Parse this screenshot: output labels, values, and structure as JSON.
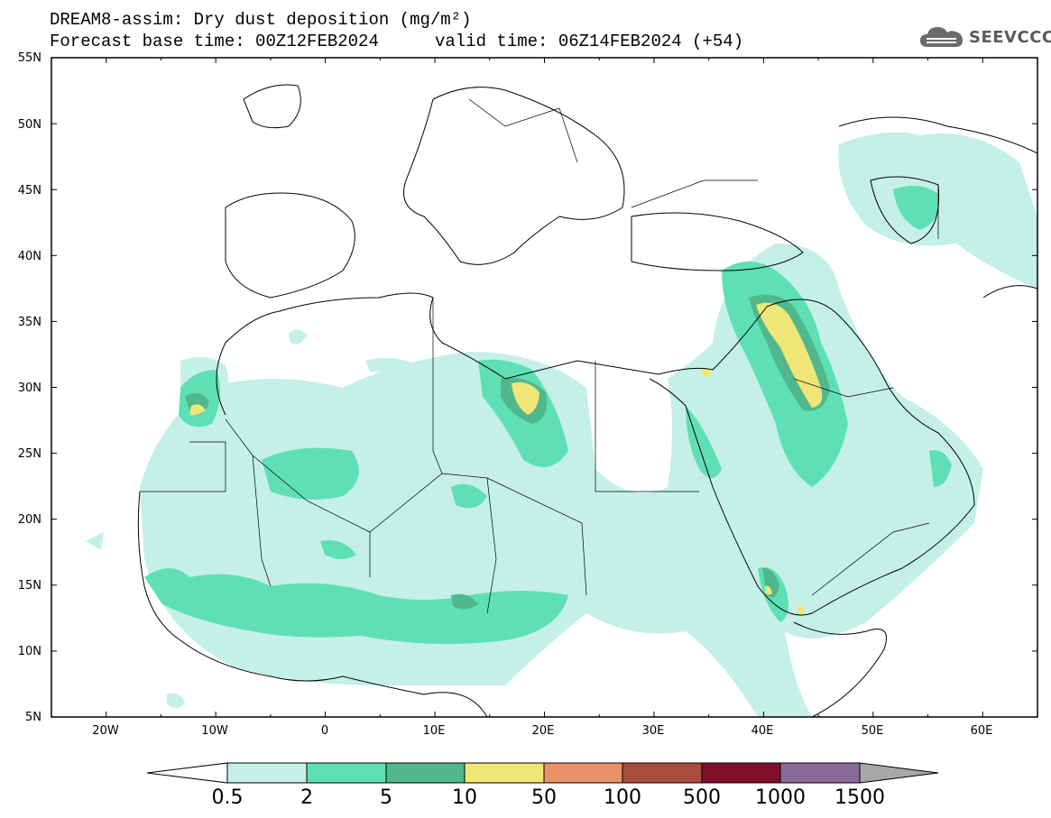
{
  "header": {
    "title_line1": "DREAM8-assim: Dry dust deposition (mg/m²)",
    "title_line2_left": "Forecast base time: 00Z12FEB2024",
    "title_line2_right": "valid time: 06Z14FEB2024 (+54)"
  },
  "logo": {
    "text": "SEEVCCC",
    "icon": "cloud-icon"
  },
  "map": {
    "lat_labels": [
      "55N",
      "50N",
      "45N",
      "40N",
      "35N",
      "30N",
      "25N",
      "20N",
      "15N",
      "10N",
      "5N"
    ],
    "lon_labels": [
      "20W",
      "10W",
      "0",
      "10E",
      "20E",
      "30E",
      "40E",
      "50E",
      "60E"
    ]
  },
  "colorbar": {
    "labels": [
      "0.5",
      "2",
      "5",
      "10",
      "50",
      "100",
      "500",
      "1000",
      "1500"
    ],
    "colors": [
      "#c4f0e8",
      "#5fe0b4",
      "#50b88c",
      "#f0e678",
      "#e8906a",
      "#a84c3c",
      "#80102a",
      "#8a6a98"
    ],
    "under_color": "#ffffff",
    "over_color": "#a8a8a8"
  }
}
